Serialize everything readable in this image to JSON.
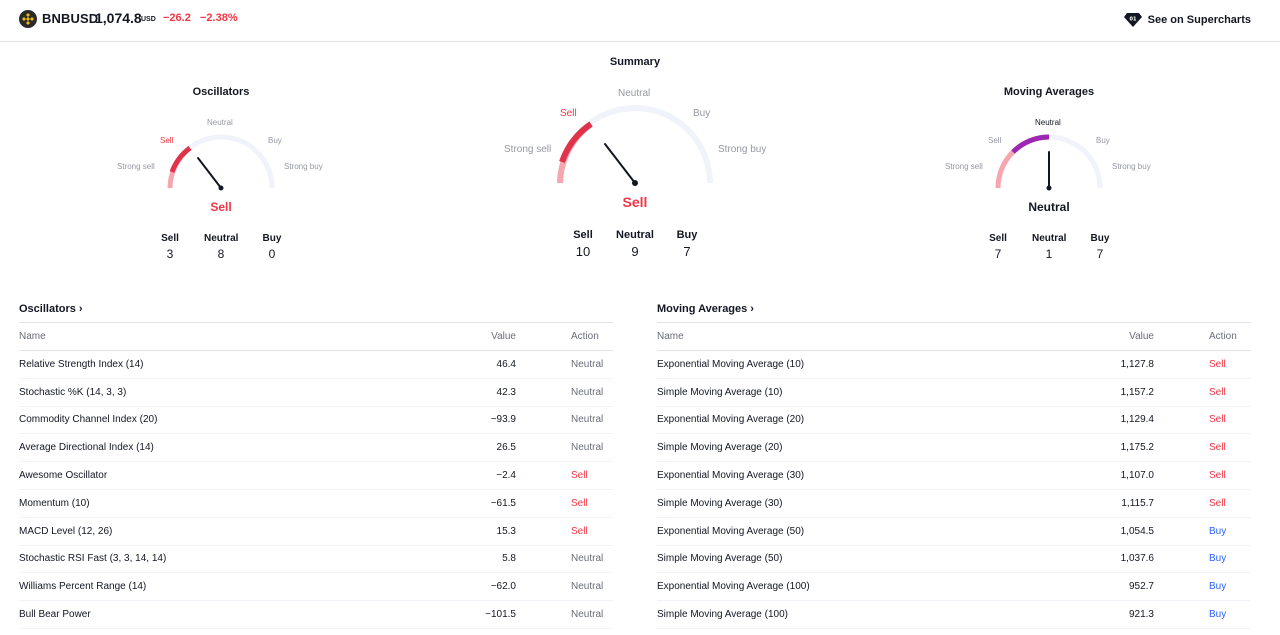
{
  "header": {
    "symbol": "BNBUSD",
    "price": "1,074.8",
    "currency": "USD",
    "change": "−26.2",
    "change_percent": "−2.38%",
    "supercharts_label": "See on Supercharts",
    "logo_icon": "binance-coin-icon",
    "supercharts_icon": "supercharts-gem-icon"
  },
  "labels": {
    "strong_sell": "Strong sell",
    "sell": "Sell",
    "neutral": "Neutral",
    "buy": "Buy",
    "strong_buy": "Strong buy"
  },
  "gauges": {
    "oscillators": {
      "title": "Oscillators",
      "result": "Sell",
      "sell": "3",
      "neutral": "8",
      "buy": "0"
    },
    "summary": {
      "title": "Summary",
      "result": "Sell",
      "sell": "10",
      "neutral": "9",
      "buy": "7"
    },
    "moving_averages": {
      "title": "Moving Averages",
      "result": "Neutral",
      "sell": "7",
      "neutral": "1",
      "buy": "7"
    }
  },
  "oscillators_table": {
    "title": "Oscillators",
    "columns": {
      "name": "Name",
      "value": "Value",
      "action": "Action"
    },
    "rows": [
      {
        "name": "Relative Strength Index (14)",
        "value": "46.4",
        "action": "Neutral"
      },
      {
        "name": "Stochastic %K (14, 3, 3)",
        "value": "42.3",
        "action": "Neutral"
      },
      {
        "name": "Commodity Channel Index (20)",
        "value": "−93.9",
        "action": "Neutral"
      },
      {
        "name": "Average Directional Index (14)",
        "value": "26.5",
        "action": "Neutral"
      },
      {
        "name": "Awesome Oscillator",
        "value": "−2.4",
        "action": "Sell"
      },
      {
        "name": "Momentum (10)",
        "value": "−61.5",
        "action": "Sell"
      },
      {
        "name": "MACD Level (12, 26)",
        "value": "15.3",
        "action": "Sell"
      },
      {
        "name": "Stochastic RSI Fast (3, 3, 14, 14)",
        "value": "5.8",
        "action": "Neutral"
      },
      {
        "name": "Williams Percent Range (14)",
        "value": "−62.0",
        "action": "Neutral"
      },
      {
        "name": "Bull Bear Power",
        "value": "−101.5",
        "action": "Neutral"
      }
    ]
  },
  "moving_averages_table": {
    "title": "Moving Averages",
    "columns": {
      "name": "Name",
      "value": "Value",
      "action": "Action"
    },
    "rows": [
      {
        "name": "Exponential Moving Average (10)",
        "value": "1,127.8",
        "action": "Sell"
      },
      {
        "name": "Simple Moving Average (10)",
        "value": "1,157.2",
        "action": "Sell"
      },
      {
        "name": "Exponential Moving Average (20)",
        "value": "1,129.4",
        "action": "Sell"
      },
      {
        "name": "Simple Moving Average (20)",
        "value": "1,175.2",
        "action": "Sell"
      },
      {
        "name": "Exponential Moving Average (30)",
        "value": "1,107.0",
        "action": "Sell"
      },
      {
        "name": "Simple Moving Average (30)",
        "value": "1,115.7",
        "action": "Sell"
      },
      {
        "name": "Exponential Moving Average (50)",
        "value": "1,054.5",
        "action": "Buy"
      },
      {
        "name": "Simple Moving Average (50)",
        "value": "1,037.6",
        "action": "Buy"
      },
      {
        "name": "Exponential Moving Average (100)",
        "value": "952.7",
        "action": "Buy"
      },
      {
        "name": "Simple Moving Average (100)",
        "value": "921.3",
        "action": "Buy"
      }
    ]
  },
  "colors": {
    "sell": "#f23645",
    "buy": "#2962ff",
    "neutral": "#6a6d78",
    "neutral_arc": "#9c27b0"
  }
}
